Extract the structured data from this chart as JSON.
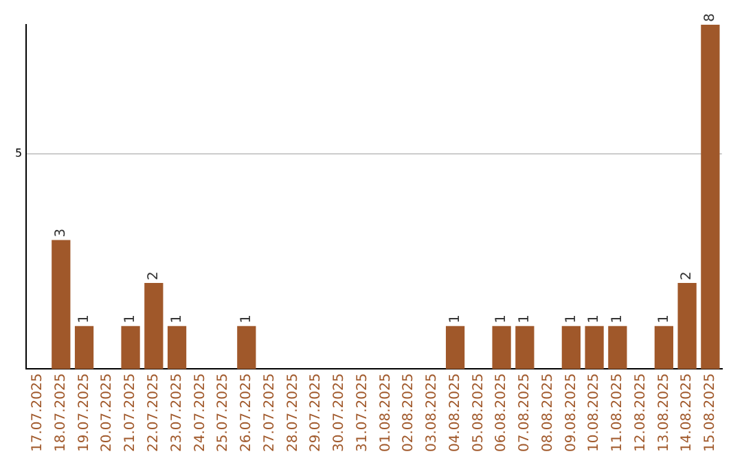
{
  "chart_data": {
    "type": "bar",
    "categories": [
      "17.07.2025",
      "18.07.2025",
      "19.07.2025",
      "20.07.2025",
      "21.07.2025",
      "22.07.2025",
      "23.07.2025",
      "24.07.2025",
      "25.07.2025",
      "26.07.2025",
      "27.07.2025",
      "28.07.2025",
      "29.07.2025",
      "30.07.2025",
      "31.07.2025",
      "01.08.2025",
      "02.08.2025",
      "03.08.2025",
      "04.08.2025",
      "05.08.2025",
      "06.08.2025",
      "07.08.2025",
      "08.08.2025",
      "09.08.2025",
      "10.08.2025",
      "11.08.2025",
      "12.08.2025",
      "13.08.2025",
      "14.08.2025",
      "15.08.2025"
    ],
    "values": [
      0,
      3,
      1,
      0,
      1,
      2,
      1,
      0,
      0,
      1,
      0,
      0,
      0,
      0,
      0,
      0,
      0,
      0,
      1,
      0,
      1,
      1,
      0,
      1,
      1,
      1,
      0,
      1,
      2,
      8
    ],
    "color": "#a0582a",
    "ylim": [
      0,
      8
    ],
    "yticks": [
      5
    ],
    "value_labels": [
      null,
      "3",
      "1",
      null,
      "1",
      "2",
      "1",
      null,
      null,
      "1",
      null,
      null,
      null,
      null,
      null,
      null,
      null,
      null,
      "1",
      null,
      "1",
      "1",
      null,
      "1",
      "1",
      "1",
      null,
      "1",
      "2",
      "8"
    ],
    "grid": "y",
    "legend": false
  }
}
